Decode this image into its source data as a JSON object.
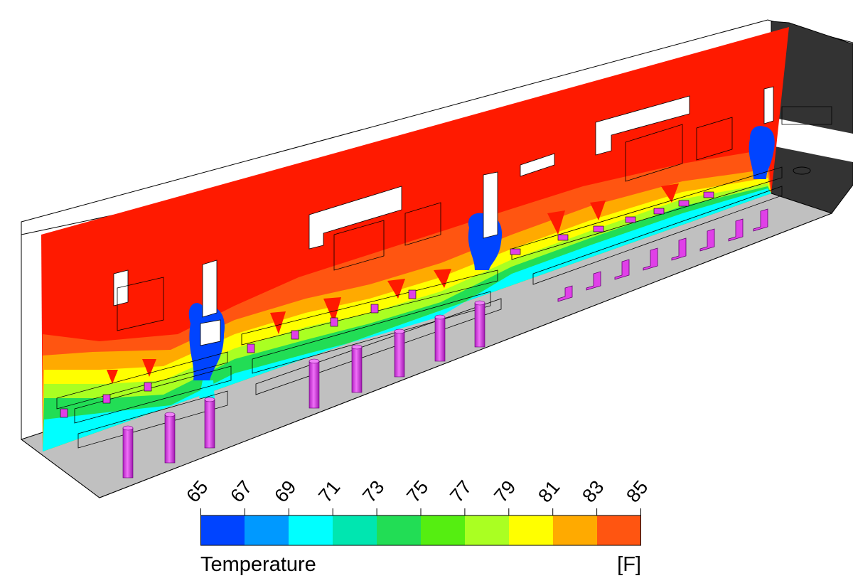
{
  "legend": {
    "title": "Temperature",
    "unit": "[F]",
    "ticks": [
      "65",
      "67",
      "69",
      "71",
      "73",
      "75",
      "77",
      "79",
      "81",
      "83",
      "85"
    ],
    "colors": [
      "#0044ff",
      "#0099ff",
      "#00ffff",
      "#00e6b0",
      "#22dd55",
      "#55ee11",
      "#aaff22",
      "#ffff00",
      "#ffaa00",
      "#ff5511"
    ]
  },
  "scene": {
    "wall_color": "#ff1a00",
    "floor_color": "#c0c0c0",
    "end_wall_color": "#333333",
    "equipment_color": "#e040e8"
  }
}
